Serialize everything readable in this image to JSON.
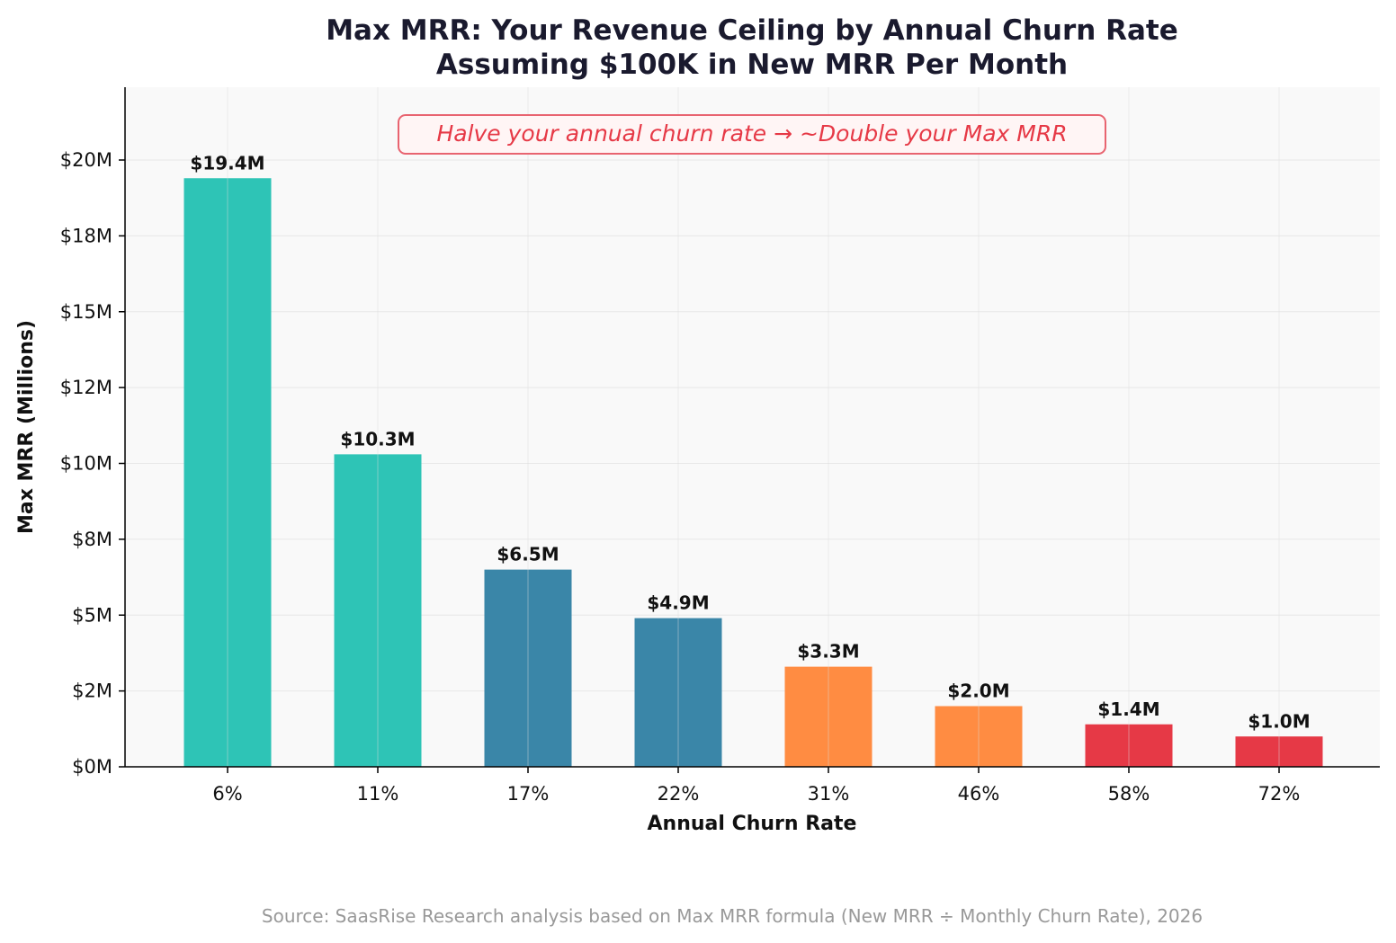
{
  "chart_data": {
    "type": "bar",
    "title": "Max MRR: Your Revenue Ceiling by Annual Churn Rate",
    "subtitle": "Assuming $100K in New MRR Per Month",
    "xlabel": "Annual Churn Rate",
    "ylabel": "Max MRR (Millions)",
    "categories": [
      "6%",
      "11%",
      "17%",
      "22%",
      "31%",
      "46%",
      "58%",
      "72%"
    ],
    "values": [
      19.4,
      10.3,
      6.5,
      4.9,
      3.3,
      2.0,
      1.4,
      1.0
    ],
    "value_labels": [
      "$19.4M",
      "$10.3M",
      "$6.5M",
      "$4.9M",
      "$3.3M",
      "$2.0M",
      "$1.4M",
      "$1.0M"
    ],
    "bar_colors": [
      "#2ec4b6",
      "#2ec4b6",
      "#3a86a8",
      "#3a86a8",
      "#ff8c42",
      "#ff8c42",
      "#e63946",
      "#e63946"
    ],
    "ylim": [
      0,
      22.4
    ],
    "yticks": [
      0,
      2.5,
      5,
      7.5,
      10,
      12.5,
      15,
      17.5,
      20
    ],
    "ytick_labels": [
      "$0M",
      "$2M",
      "$5M",
      "$8M",
      "$10M",
      "$12M",
      "$15M",
      "$18M",
      "$20M"
    ],
    "grid": true,
    "annotation": {
      "text": "Halve your annual churn rate → ~Double your Max MRR",
      "color": "#e63946"
    }
  },
  "source": "Source: SaasRise Research analysis based on Max MRR formula (New MRR ÷ Monthly Churn Rate), 2026",
  "colors": {
    "plot_background": "#f9f9f9",
    "grid": "#e8e8e8",
    "title": "#1a1a2e",
    "source_text": "#999999"
  }
}
